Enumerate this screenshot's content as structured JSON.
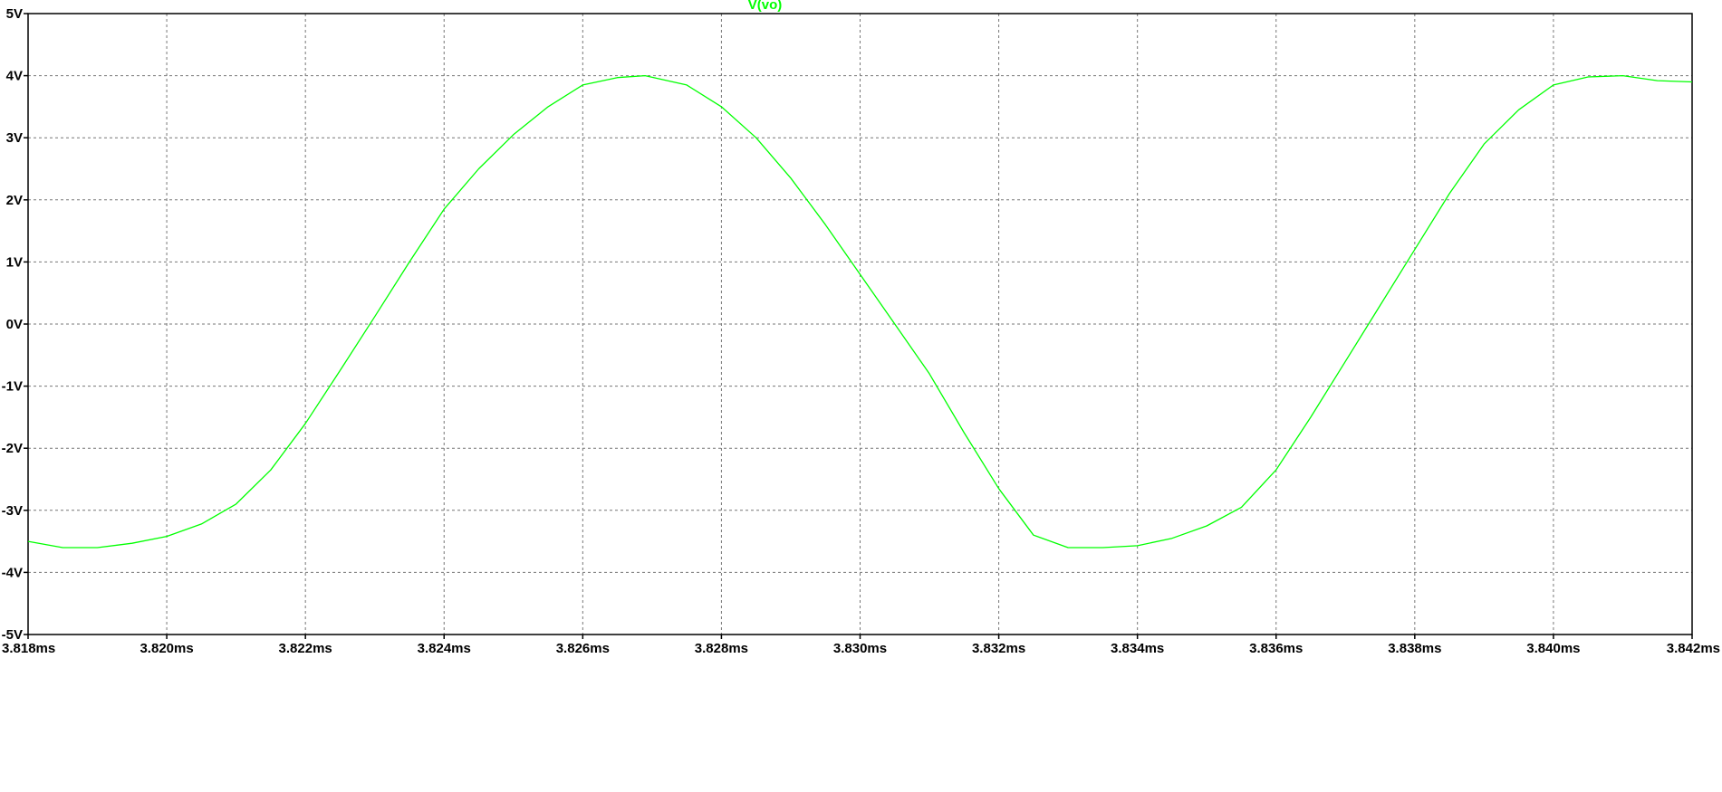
{
  "chart_data": {
    "type": "line",
    "title": "V(vo)",
    "x_unit": "ms",
    "y_unit": "V",
    "xlim": [
      3.818,
      3.842
    ],
    "ylim": [
      -5,
      5
    ],
    "x_ticks": [
      3.818,
      3.82,
      3.822,
      3.824,
      3.826,
      3.828,
      3.83,
      3.832,
      3.834,
      3.836,
      3.838,
      3.84,
      3.842
    ],
    "x_tick_labels": [
      "3.818ms",
      "3.820ms",
      "3.822ms",
      "3.824ms",
      "3.826ms",
      "3.828ms",
      "3.830ms",
      "3.832ms",
      "3.834ms",
      "3.836ms",
      "3.838ms",
      "3.840ms",
      "3.842ms"
    ],
    "y_ticks": [
      5,
      4,
      3,
      2,
      1,
      0,
      -1,
      -2,
      -3,
      -4,
      -5
    ],
    "y_tick_labels": [
      "5V",
      "4V",
      "3V",
      "2V",
      "1V",
      "0V",
      "-1V",
      "-2V",
      "-3V",
      "-4V",
      "-5V"
    ],
    "grid": true,
    "grid_style": "dotted",
    "series": [
      {
        "name": "V(vo)",
        "color": "#00ff00",
        "x": [
          3.818,
          3.8185,
          3.819,
          3.8195,
          3.82,
          3.8205,
          3.821,
          3.8215,
          3.822,
          3.8225,
          3.823,
          3.8235,
          3.824,
          3.8245,
          3.825,
          3.8255,
          3.826,
          3.8265,
          3.8269,
          3.8275,
          3.828,
          3.8285,
          3.829,
          3.8295,
          3.83,
          3.8305,
          3.831,
          3.8315,
          3.832,
          3.8325,
          3.833,
          3.8335,
          3.834,
          3.8345,
          3.835,
          3.8355,
          3.836,
          3.8365,
          3.837,
          3.8375,
          3.838,
          3.8385,
          3.839,
          3.8395,
          3.84,
          3.8405,
          3.841,
          3.8415,
          3.842
        ],
        "y": [
          -3.5,
          -3.6,
          -3.6,
          -3.53,
          -3.42,
          -3.22,
          -2.9,
          -2.35,
          -1.6,
          -0.75,
          0.12,
          1.0,
          1.85,
          2.5,
          3.05,
          3.5,
          3.85,
          3.97,
          4.0,
          3.85,
          3.5,
          3.0,
          2.35,
          1.6,
          0.8,
          0.0,
          -0.8,
          -1.75,
          -2.65,
          -3.4,
          -3.6,
          -3.6,
          -3.57,
          -3.45,
          -3.25,
          -2.95,
          -2.35,
          -1.5,
          -0.6,
          0.3,
          1.2,
          2.1,
          2.9,
          3.45,
          3.85,
          3.98,
          4.0,
          3.92,
          3.9
        ]
      }
    ]
  }
}
